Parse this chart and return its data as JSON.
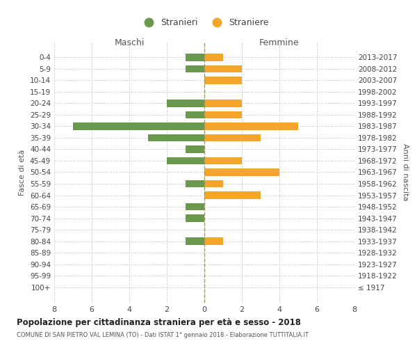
{
  "age_groups": [
    "0-4",
    "5-9",
    "10-14",
    "15-19",
    "20-24",
    "25-29",
    "30-34",
    "35-39",
    "40-44",
    "45-49",
    "50-54",
    "55-59",
    "60-64",
    "65-69",
    "70-74",
    "75-79",
    "80-84",
    "85-89",
    "90-94",
    "95-99",
    "100+"
  ],
  "birth_years": [
    "2013-2017",
    "2008-2012",
    "2003-2007",
    "1998-2002",
    "1993-1997",
    "1988-1992",
    "1983-1987",
    "1978-1982",
    "1973-1977",
    "1968-1972",
    "1963-1967",
    "1958-1962",
    "1953-1957",
    "1948-1952",
    "1943-1947",
    "1938-1942",
    "1933-1937",
    "1928-1932",
    "1923-1927",
    "1918-1922",
    "≤ 1917"
  ],
  "males": [
    1,
    1,
    0,
    0,
    2,
    1,
    7,
    3,
    1,
    2,
    0,
    1,
    0,
    1,
    1,
    0,
    1,
    0,
    0,
    0,
    0
  ],
  "females": [
    1,
    2,
    2,
    0,
    2,
    2,
    5,
    3,
    0,
    2,
    4,
    1,
    3,
    0,
    0,
    0,
    1,
    0,
    0,
    0,
    0
  ],
  "male_color": "#6a994e",
  "female_color": "#f4a62a",
  "grid_color": "#d0d0d0",
  "center_line_color": "#999966",
  "title": "Popolazione per cittadinanza straniera per età e sesso - 2018",
  "subtitle": "COMUNE DI SAN PIETRO VAL LEMINA (TO) - Dati ISTAT 1° gennaio 2018 - Elaborazione TUTTITALIA.IT",
  "xlabel_left": "Maschi",
  "xlabel_right": "Femmine",
  "ylabel_left": "Fasce di età",
  "ylabel_right": "Anni di nascita",
  "legend_male": "Stranieri",
  "legend_female": "Straniere",
  "xlim": 8,
  "background_color": "#ffffff"
}
